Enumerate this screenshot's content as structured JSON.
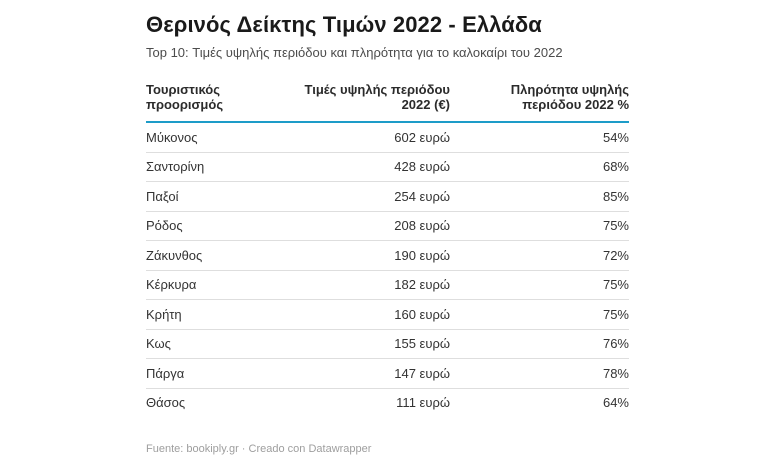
{
  "title": "Θερινός Δείκτης Τιμών 2022 - Ελλάδα",
  "subtitle": "Top 10: Τιμές υψηλής περιόδου και πληρότητα για το καλοκαίρι του 2022",
  "table": {
    "columns": [
      {
        "line1": "Τουριστικός",
        "line2": "προορισμός",
        "align": "left"
      },
      {
        "line1": "Τιμές υψηλής περιόδου",
        "line2": "2022 (€)",
        "align": "right"
      },
      {
        "line1": "Πληρότητα υψηλής",
        "line2": "περιόδου 2022 %",
        "align": "right"
      }
    ],
    "rows": [
      {
        "destination": "Μύκονος",
        "price": "602 ευρώ",
        "occupancy": "54%"
      },
      {
        "destination": "Σαντορίνη",
        "price": "428 ευρώ",
        "occupancy": "68%"
      },
      {
        "destination": "Παξοί",
        "price": "254 ευρώ",
        "occupancy": "85%"
      },
      {
        "destination": "Ρόδος",
        "price": "208 ευρώ",
        "occupancy": "75%"
      },
      {
        "destination": "Ζάκυνθος",
        "price": "190 ευρώ",
        "occupancy": "72%"
      },
      {
        "destination": "Κέρκυρα",
        "price": "182 ευρώ",
        "occupancy": "75%"
      },
      {
        "destination": "Κρήτη",
        "price": "160 ευρώ",
        "occupancy": "75%"
      },
      {
        "destination": "Κως",
        "price": "155 ευρώ",
        "occupancy": "76%"
      },
      {
        "destination": "Πάργα",
        "price": "147 ευρώ",
        "occupancy": "78%"
      },
      {
        "destination": "Θάσος",
        "price": "111 ευρώ",
        "occupancy": "64%"
      }
    ]
  },
  "footer": {
    "source_label": "Fuente: ",
    "source_link": "bookiply.gr",
    "separator": " · ",
    "credit_label": "Creado con ",
    "credit_link": "Datawrapper"
  },
  "colors": {
    "header_rule": "#1d9cc8",
    "row_divider": "#dedede",
    "title_text": "#1a1a1a",
    "body_text": "#333333",
    "footer_text": "#9e9e9e",
    "background": "#ffffff"
  },
  "chart_data": {
    "type": "table",
    "title": "Θερινός Δείκτης Τιμών 2022 - Ελλάδα",
    "subtitle": "Top 10: Τιμές υψηλής περιόδου και πληρότητα για το καλοκαίρι του 2022",
    "columns": [
      "Τουριστικός προορισμός",
      "Τιμές υψηλής περιόδου 2022 (€)",
      "Πληρότητα υψηλής περιόδου 2022 %"
    ],
    "destinations": [
      "Μύκονος",
      "Σαντορίνη",
      "Παξοί",
      "Ρόδος",
      "Ζάκυνθος",
      "Κέρκυρα",
      "Κρήτη",
      "Κως",
      "Πάργα",
      "Θάσος"
    ],
    "prices_eur": [
      602,
      428,
      254,
      208,
      190,
      182,
      160,
      155,
      147,
      111
    ],
    "occupancy_pct": [
      54,
      68,
      85,
      75,
      72,
      75,
      75,
      76,
      78,
      64
    ],
    "source": "bookiply.gr",
    "tool": "Datawrapper"
  }
}
